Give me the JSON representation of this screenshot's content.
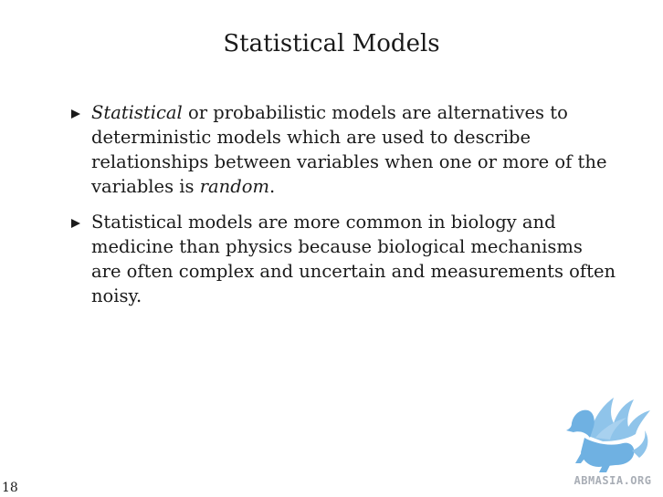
{
  "slide": {
    "title": "Statistical Models",
    "page_number": "18"
  },
  "bullets": [
    {
      "segments": [
        {
          "text": "Statistical",
          "italic": true
        },
        {
          "text": " or probabilistic models are alternatives to deterministic models which are used to describe relationships between variables when one or more of the variables is ",
          "italic": false
        },
        {
          "text": "random",
          "italic": true
        },
        {
          "text": ".",
          "italic": false
        }
      ]
    },
    {
      "segments": [
        {
          "text": "Statistical models are more common in biology and medicine than physics because biological mechanisms are often complex and uncertain and measurements often noisy.",
          "italic": false
        }
      ]
    }
  ],
  "logo": {
    "text": "ABMASIA.ORG",
    "wing_color": "#8fc4ea",
    "body_color": "#6fb1e2",
    "text_color": "#a9aeb6"
  }
}
